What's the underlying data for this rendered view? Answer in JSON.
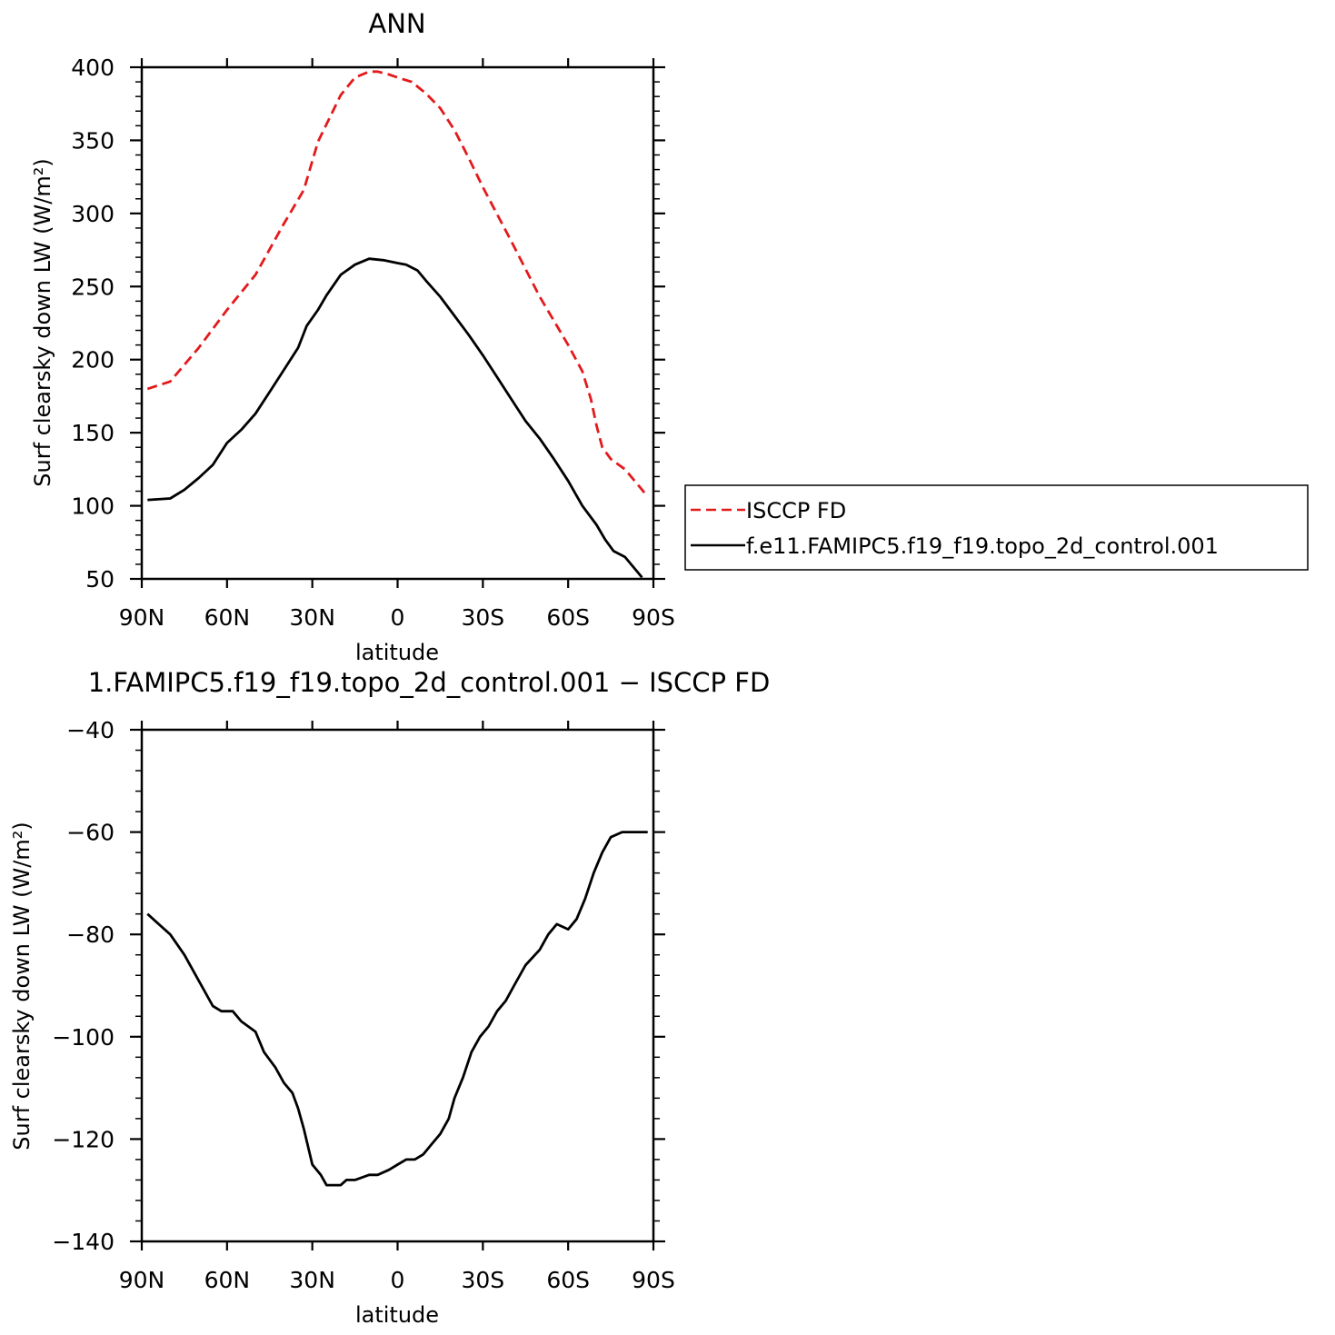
{
  "chart_data": [
    {
      "type": "line",
      "title": "ANN",
      "xlabel": "latitude",
      "ylabel": "Surf clearsky down LW (W/m²)",
      "x_ticks": [
        "90N",
        "60N",
        "30N",
        "0",
        "30S",
        "60S",
        "90S"
      ],
      "y_ticks": [
        "50",
        "100",
        "150",
        "200",
        "250",
        "300",
        "350",
        "400"
      ],
      "xlim": [
        90,
        -90
      ],
      "ylim": [
        50,
        400
      ],
      "legend": "right",
      "series": [
        {
          "name": "ISCCP FD",
          "color": "#e31a1c",
          "dash": true,
          "x": [
            88,
            80,
            70,
            60,
            50,
            40,
            33,
            28,
            20,
            15,
            10,
            7,
            3,
            0,
            -5,
            -10,
            -15,
            -20,
            -25,
            -30,
            -40,
            -50,
            -60,
            -65,
            -68,
            -70,
            -72,
            -75,
            -80,
            -83,
            -86,
            -88
          ],
          "y": [
            180,
            185,
            208,
            234,
            258,
            293,
            316,
            349,
            381,
            393,
            397,
            397,
            395,
            393,
            390,
            382,
            372,
            357,
            338,
            318,
            281,
            243,
            210,
            192,
            173,
            155,
            140,
            132,
            125,
            118,
            111,
            106
          ]
        },
        {
          "name": "f.e11.FAMIPC5.f19_f19.topo_2d_control.001",
          "color": "#000000",
          "dash": false,
          "x": [
            88,
            80,
            75,
            70,
            65,
            60,
            55,
            50,
            45,
            40,
            35,
            32,
            28,
            25,
            20,
            15,
            10,
            5,
            0,
            -3,
            -7,
            -10,
            -15,
            -20,
            -25,
            -30,
            -35,
            -40,
            -45,
            -50,
            -55,
            -60,
            -65,
            -70,
            -73,
            -76,
            -80,
            -83,
            -86
          ],
          "y": [
            104,
            105,
            111,
            119,
            128,
            143,
            152,
            163,
            178,
            193,
            208,
            223,
            234,
            244,
            258,
            265,
            269,
            268,
            266,
            265,
            261,
            254,
            243,
            230,
            217,
            203,
            188,
            173,
            158,
            146,
            132,
            117,
            100,
            87,
            77,
            69,
            65,
            58,
            51
          ]
        }
      ]
    },
    {
      "type": "line",
      "title": "1.FAMIPC5.f19_f19.topo_2d_control.001 − ISCCP FD",
      "xlabel": "latitude",
      "ylabel": "Surf clearsky down LW (W/m²)",
      "x_ticks": [
        "90N",
        "60N",
        "30N",
        "0",
        "30S",
        "60S",
        "90S"
      ],
      "y_ticks": [
        "−40",
        "−60",
        "−80",
        "−100",
        "−120",
        "−140"
      ],
      "xlim": [
        90,
        -90
      ],
      "ylim": [
        -140,
        -40
      ],
      "series": [
        {
          "name": "f.e11.FAMIPC5.f19_f19.topo_2d_control.001 − ISCCP FD",
          "color": "#000000",
          "dash": false,
          "x": [
            88,
            82,
            80,
            75,
            70,
            65,
            62,
            58,
            55,
            50,
            47,
            43,
            40,
            37,
            35,
            33,
            30,
            27,
            25,
            22,
            20,
            18,
            15,
            10,
            7,
            3,
            0,
            -3,
            -6,
            -9,
            -12,
            -15,
            -18,
            -20,
            -23,
            -26,
            -29,
            -32,
            -35,
            -38,
            -41,
            -45,
            -50,
            -53,
            -56,
            -60,
            -63,
            -66,
            -69,
            -72,
            -75,
            -79,
            -81,
            -84,
            -88
          ],
          "y": [
            -76,
            -79,
            -80,
            -84,
            -89,
            -94,
            -95,
            -95,
            -97,
            -99,
            -103,
            -106,
            -109,
            -111,
            -114,
            -118,
            -125,
            -127,
            -129,
            -129,
            -129,
            -128,
            -128,
            -127,
            -127,
            -126,
            -125,
            -124,
            -124,
            -123,
            -121,
            -119,
            -116,
            -112,
            -108,
            -103,
            -100,
            -98,
            -95,
            -93,
            -90,
            -86,
            -83,
            -80,
            -78,
            -79,
            -77,
            -73,
            -68,
            -64,
            -61,
            -60,
            -60,
            -60,
            -60
          ]
        }
      ]
    }
  ]
}
